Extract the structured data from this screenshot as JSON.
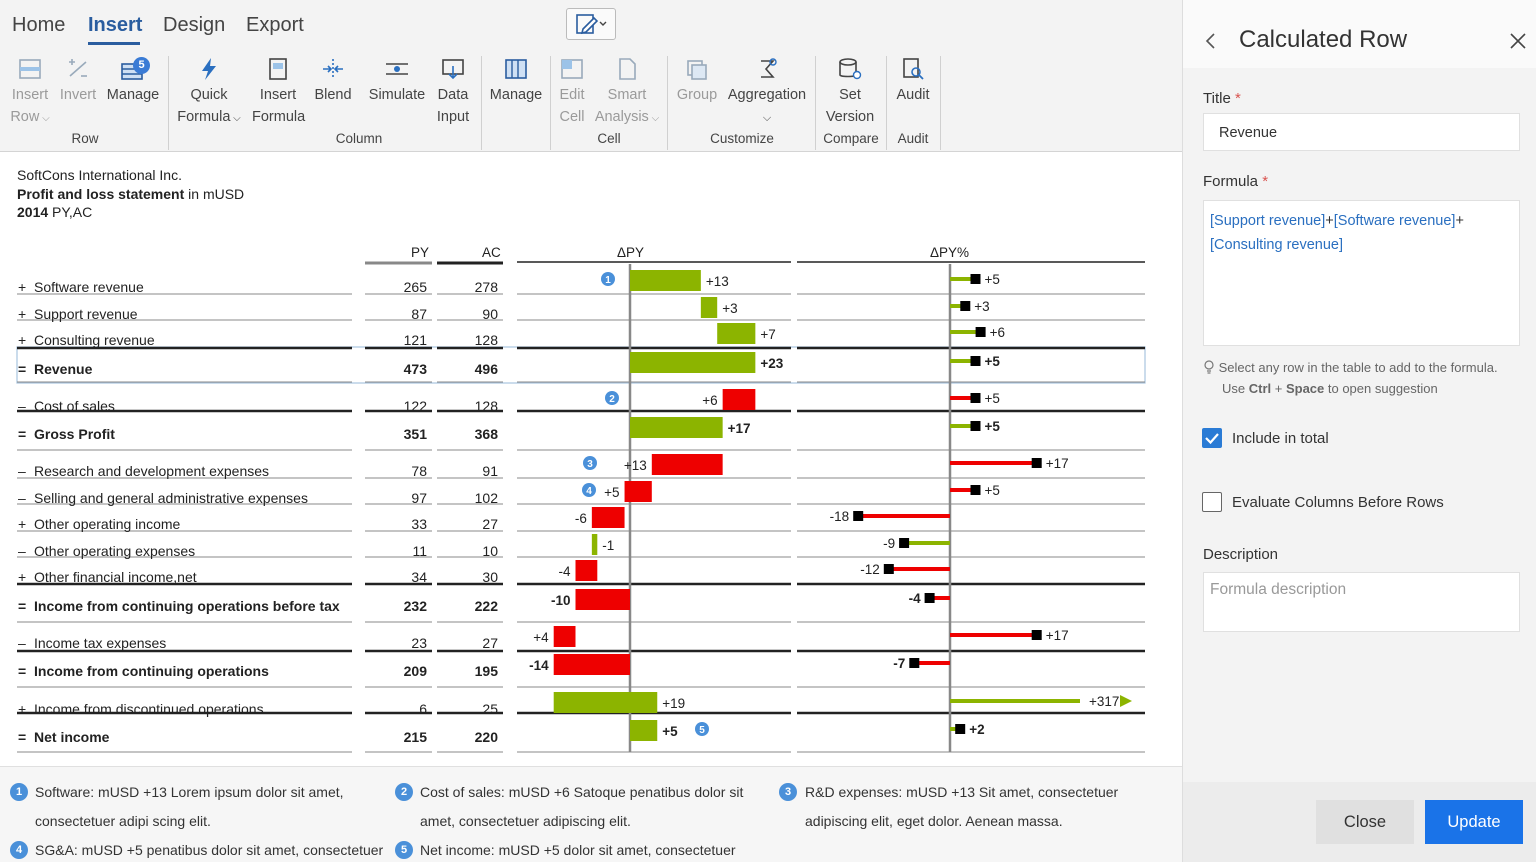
{
  "ribbon": {
    "tabs": [
      "Home",
      "Insert",
      "Design",
      "Export"
    ],
    "active_tab": "Insert",
    "buttons": {
      "insert_row": [
        "Insert",
        "Row"
      ],
      "invert": "Invert",
      "manage_row": "Manage",
      "manage_badge": "5",
      "quick_formula": [
        "Quick",
        "Formula"
      ],
      "insert_formula": [
        "Insert",
        "Formula"
      ],
      "blend": "Blend",
      "simulate": "Simulate",
      "data_input": [
        "Data",
        "Input"
      ],
      "manage_col": "Manage",
      "edit_cell": [
        "Edit",
        "Cell"
      ],
      "smart_analysis": [
        "Smart",
        "Analysis"
      ],
      "group": "Group",
      "aggregation": "Aggregation",
      "set_version": [
        "Set",
        "Version"
      ],
      "audit": "Audit"
    },
    "groups": [
      "Row",
      "Column",
      "Cell",
      "Customize",
      "Compare",
      "Audit"
    ]
  },
  "report": {
    "company": "SoftCons International Inc.",
    "statement_bold": "Profit and loss statement",
    "statement_unit": " in mUSD",
    "period_bold": "2014",
    "period": " PY,AC",
    "col_headers": {
      "py": "PY",
      "ac": "AC",
      "dpy": "ΔPY",
      "dpy_pct": "ΔPY%"
    }
  },
  "rows": [
    {
      "sym": "+",
      "label": "Software revenue",
      "py": "265",
      "ac": "278",
      "bold": false
    },
    {
      "sym": "+",
      "label": "Support revenue",
      "py": "87",
      "ac": "90",
      "bold": false
    },
    {
      "sym": "+",
      "label": "Consulting revenue",
      "py": "121",
      "ac": "128",
      "bold": false
    },
    {
      "sym": "=",
      "label": "Revenue",
      "py": "473",
      "ac": "496",
      "bold": true
    },
    {
      "sym": "-",
      "label": "Cost of sales",
      "py": "122",
      "ac": "128",
      "bold": false
    },
    {
      "sym": "=",
      "label": "Gross Profit",
      "py": "351",
      "ac": "368",
      "bold": true
    },
    {
      "sym": "-",
      "label": "Research and development expenses",
      "py": "78",
      "ac": "91",
      "bold": false
    },
    {
      "sym": "-",
      "label": "Selling and general administrative expenses",
      "py": "97",
      "ac": "102",
      "bold": false
    },
    {
      "sym": "+",
      "label": "Other operating income",
      "py": "33",
      "ac": "27",
      "bold": false
    },
    {
      "sym": "-",
      "label": "Other operating expenses",
      "py": "11",
      "ac": "10",
      "bold": false
    },
    {
      "sym": "+",
      "label": "Other financial income,net",
      "py": "34",
      "ac": "30",
      "bold": false
    },
    {
      "sym": "=",
      "label": "Income from continuing operations before tax",
      "py": "232",
      "ac": "222",
      "bold": true
    },
    {
      "sym": "-",
      "label": "Income tax expenses",
      "py": "23",
      "ac": "27",
      "bold": false
    },
    {
      "sym": "=",
      "label": "Income from continuing operations",
      "py": "209",
      "ac": "195",
      "bold": true
    },
    {
      "sym": "+",
      "label": "Income from discontinued operations",
      "py": "6",
      "ac": "25",
      "bold": false
    },
    {
      "sym": "=",
      "label": "Net income",
      "py": "215",
      "ac": "220",
      "bold": true
    }
  ],
  "chart_data": [
    {
      "type": "bar",
      "title": "ΔPY",
      "categories": [
        "Software revenue",
        "Support revenue",
        "Consulting revenue",
        "Revenue",
        "Cost of sales",
        "Gross Profit",
        "Research and development expenses",
        "Selling and general administrative expenses",
        "Other operating income",
        "Other operating expenses",
        "Other financial income,net",
        "Income from continuing operations before tax",
        "Income tax expenses",
        "Income from continuing operations",
        "Income from discontinued operations",
        "Net income"
      ],
      "values": [
        13,
        3,
        7,
        23,
        6,
        17,
        13,
        5,
        -6,
        -1,
        -4,
        -10,
        4,
        -14,
        19,
        5
      ],
      "labels": [
        "+13",
        "+3",
        "+7",
        "+23",
        "+6",
        "+17",
        "+13",
        "+5",
        "-6",
        "-1",
        "-4",
        "-10",
        "+4",
        "-14",
        "+19",
        "+5"
      ],
      "waterfall": true,
      "colors": {
        "good": "#8cb400",
        "bad": "#ee0000"
      }
    },
    {
      "type": "bar",
      "title": "ΔPY%",
      "categories": [
        "Software revenue",
        "Support revenue",
        "Consulting revenue",
        "Revenue",
        "Cost of sales",
        "Gross Profit",
        "Research and development expenses",
        "Selling and general administrative expenses",
        "Other operating income",
        "Other operating expenses",
        "Other financial income,net",
        "Income from continuing operations before tax",
        "Income tax expenses",
        "Income from continuing operations",
        "Income from discontinued operations",
        "Net income"
      ],
      "values": [
        5,
        3,
        6,
        5,
        5,
        5,
        17,
        5,
        -18,
        -9,
        -12,
        -4,
        17,
        -7,
        317,
        2
      ],
      "labels": [
        "+5",
        "+3",
        "+6",
        "+5",
        "+5",
        "+5",
        "+17",
        "+5",
        "-18",
        "-9",
        "-12",
        "-4",
        "+17",
        "-7",
        "+317",
        "+2"
      ],
      "pin_style": true,
      "colors": {
        "good": "#8cb400",
        "bad": "#ee0000",
        "head": "#000000"
      }
    }
  ],
  "notes": [
    {
      "n": "1",
      "lines": [
        "Software: mUSD +13 Lorem ipsum dolor sit amet,",
        "consectetuer adipi scing elit."
      ]
    },
    {
      "n": "2",
      "lines": [
        "Cost of sales: mUSD +6 Satoque penatibus dolor sit",
        "amet, consectetuer adipiscing elit."
      ]
    },
    {
      "n": "3",
      "lines": [
        "R&D expenses: mUSD +13 Sit amet, consectetuer",
        "adipiscing elit, eget dolor. Aenean massa."
      ]
    },
    {
      "n": "4",
      "lines": [
        "SG&A: mUSD +5 penatibus dolor sit amet, consectetuer"
      ]
    },
    {
      "n": "5",
      "lines": [
        "Net income: mUSD +5 dolor sit amet, consectetuer"
      ]
    }
  ],
  "panel": {
    "title": "Calculated Row",
    "title_label": "Title",
    "title_value": "Revenue",
    "formula_label": "Formula",
    "formula_line1a": "[Support revenue]",
    "formula_line1b": "+",
    "formula_line1c": "[Software revenue]",
    "formula_line1d": "+",
    "formula_line2": "[Consulting revenue]",
    "hint_line1": "Select any row in the table to add to the formula.",
    "hint_line2a": "Use ",
    "hint_ctrl": "Ctrl",
    "hint_plus": " + ",
    "hint_space": "Space",
    "hint_line2b": " to open suggestion",
    "include_total": "Include in total",
    "include_total_checked": true,
    "evaluate_columns": "Evaluate Columns Before Rows",
    "evaluate_columns_checked": false,
    "description_label": "Description",
    "description_placeholder": "Formula description",
    "close_label": "Close",
    "update_label": "Update"
  }
}
